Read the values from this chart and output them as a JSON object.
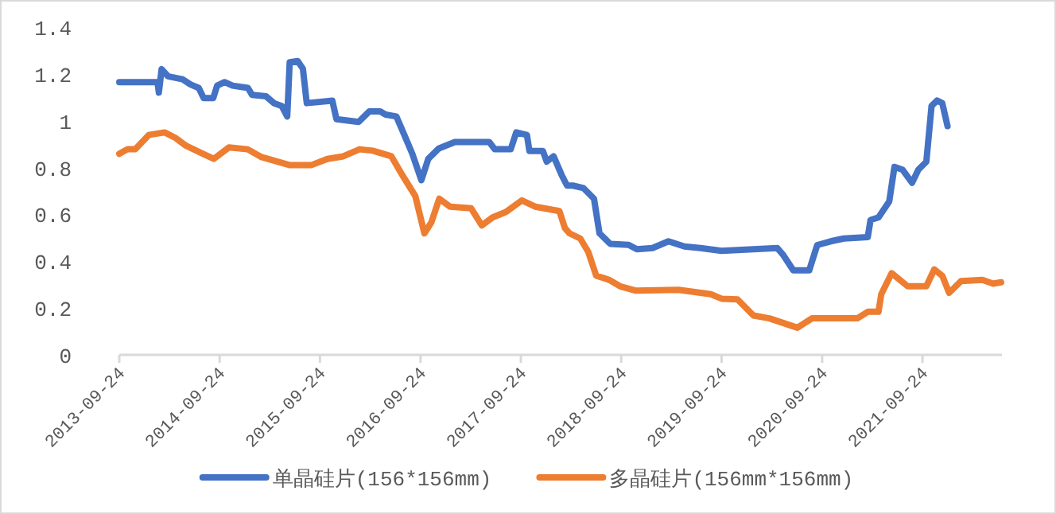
{
  "chart_data": {
    "type": "line",
    "xlim": [
      "2013-09-24",
      "2022-07-10"
    ],
    "xticks": [
      "2013-09-24",
      "2014-09-24",
      "2015-09-24",
      "2016-09-24",
      "2017-09-24",
      "2018-09-24",
      "2019-09-24",
      "2020-09-24",
      "2021-09-24"
    ],
    "ylim": [
      0,
      1.4
    ],
    "yticks": [
      0,
      0.2,
      0.4,
      0.6,
      0.8,
      1,
      1.2,
      1.4
    ],
    "grid": false,
    "legend": "bottom",
    "marker": "none",
    "line_style": "solid",
    "series": [
      {
        "name": "单晶硅片(156*156mm)",
        "color": "#4472c4",
        "x": [
          "2013-09-24",
          "2014-02-10",
          "2014-02-15",
          "2014-02-25",
          "2014-03-20",
          "2014-05-12",
          "2014-06-10",
          "2014-07-10",
          "2014-07-28",
          "2014-09-01",
          "2014-09-15",
          "2014-10-12",
          "2014-11-10",
          "2015-01-05",
          "2015-01-20",
          "2015-03-12",
          "2015-04-10",
          "2015-05-08",
          "2015-05-28",
          "2015-06-06",
          "2015-07-05",
          "2015-07-24",
          "2015-08-07",
          "2015-11-08",
          "2015-11-23",
          "2016-02-12",
          "2016-03-22",
          "2016-04-30",
          "2016-05-20",
          "2016-06-28",
          "2016-07-27",
          "2016-08-25",
          "2016-09-27",
          "2016-10-22",
          "2016-11-30",
          "2017-01-27",
          "2017-06-01",
          "2017-06-21",
          "2017-08-18",
          "2017-09-07",
          "2017-10-16",
          "2017-10-25",
          "2017-12-13",
          "2017-12-27",
          "2018-01-21",
          "2018-02-19",
          "2018-03-11",
          "2018-04-01",
          "2018-05-10",
          "2018-06-17",
          "2018-07-07",
          "2018-08-15",
          "2018-10-21",
          "2018-11-20",
          "2019-01-16",
          "2019-03-15",
          "2019-05-12",
          "2019-07-09",
          "2019-09-24",
          "2020-01-18",
          "2020-04-14",
          "2020-05-04",
          "2020-06-11",
          "2020-08-08",
          "2020-09-06",
          "2020-10-25",
          "2020-12-12",
          "2021-03-09",
          "2021-03-19",
          "2021-04-17",
          "2021-05-26",
          "2021-06-14",
          "2021-07-13",
          "2021-08-17",
          "2021-09-09",
          "2021-10-08",
          "2021-10-27",
          "2021-11-16",
          "2021-12-05",
          "2021-12-24"
        ],
        "values": [
          1.165,
          1.165,
          1.12,
          1.22,
          1.19,
          1.177,
          1.155,
          1.14,
          1.097,
          1.097,
          1.15,
          1.165,
          1.15,
          1.14,
          1.11,
          1.104,
          1.075,
          1.063,
          1.018,
          1.25,
          1.255,
          1.222,
          1.075,
          1.086,
          1.007,
          0.995,
          1.04,
          1.04,
          1.026,
          1.018,
          0.939,
          0.859,
          0.746,
          0.837,
          0.882,
          0.909,
          0.909,
          0.878,
          0.878,
          0.95,
          0.939,
          0.871,
          0.871,
          0.825,
          0.848,
          0.769,
          0.723,
          0.723,
          0.712,
          0.667,
          0.519,
          0.474,
          0.47,
          0.451,
          0.456,
          0.485,
          0.463,
          0.456,
          0.444,
          0.451,
          0.456,
          0.429,
          0.361,
          0.361,
          0.469,
          0.485,
          0.497,
          0.503,
          0.576,
          0.587,
          0.655,
          0.803,
          0.791,
          0.735,
          0.791,
          0.825,
          1.063,
          1.086,
          1.075,
          0.977
        ]
      },
      {
        "name": "多晶硅片(156mm*156mm)",
        "color": "#ed7d31",
        "x": [
          "2013-09-24",
          "2013-10-23",
          "2013-11-21",
          "2014-01-09",
          "2014-03-08",
          "2014-04-16",
          "2014-05-25",
          "2014-08-01",
          "2014-09-03",
          "2014-10-28",
          "2015-01-04",
          "2015-02-21",
          "2015-06-07",
          "2015-08-23",
          "2015-10-21",
          "2015-12-18",
          "2016-02-15",
          "2016-04-03",
          "2016-06-10",
          "2016-07-19",
          "2016-09-05",
          "2016-10-08",
          "2016-11-02",
          "2016-12-01",
          "2017-01-09",
          "2017-03-27",
          "2017-05-05",
          "2017-06-13",
          "2017-07-31",
          "2017-09-28",
          "2017-11-15",
          "2018-02-11",
          "2018-03-03",
          "2018-03-20",
          "2018-04-28",
          "2018-05-27",
          "2018-06-25",
          "2018-08-12",
          "2018-09-20",
          "2018-11-17",
          "2019-04-21",
          "2019-08-16",
          "2019-09-24",
          "2019-11-21",
          "2020-01-18",
          "2020-03-16",
          "2020-06-26",
          "2020-08-18",
          "2021-01-30",
          "2021-03-09",
          "2021-04-17",
          "2021-04-27",
          "2021-06-04",
          "2021-08-01",
          "2021-10-08",
          "2021-11-06",
          "2021-12-05",
          "2021-12-30",
          "2022-02-11",
          "2022-04-30",
          "2022-06-08",
          "2022-07-07"
        ],
        "values": [
          0.859,
          0.878,
          0.878,
          0.939,
          0.95,
          0.927,
          0.893,
          0.855,
          0.837,
          0.886,
          0.878,
          0.846,
          0.81,
          0.81,
          0.837,
          0.848,
          0.878,
          0.872,
          0.848,
          0.769,
          0.678,
          0.519,
          0.565,
          0.667,
          0.633,
          0.626,
          0.553,
          0.587,
          0.61,
          0.66,
          0.633,
          0.614,
          0.542,
          0.519,
          0.497,
          0.44,
          0.338,
          0.32,
          0.293,
          0.274,
          0.278,
          0.259,
          0.24,
          0.237,
          0.168,
          0.156,
          0.116,
          0.156,
          0.156,
          0.184,
          0.184,
          0.259,
          0.349,
          0.293,
          0.293,
          0.365,
          0.338,
          0.265,
          0.315,
          0.32,
          0.304,
          0.31
        ]
      }
    ]
  }
}
